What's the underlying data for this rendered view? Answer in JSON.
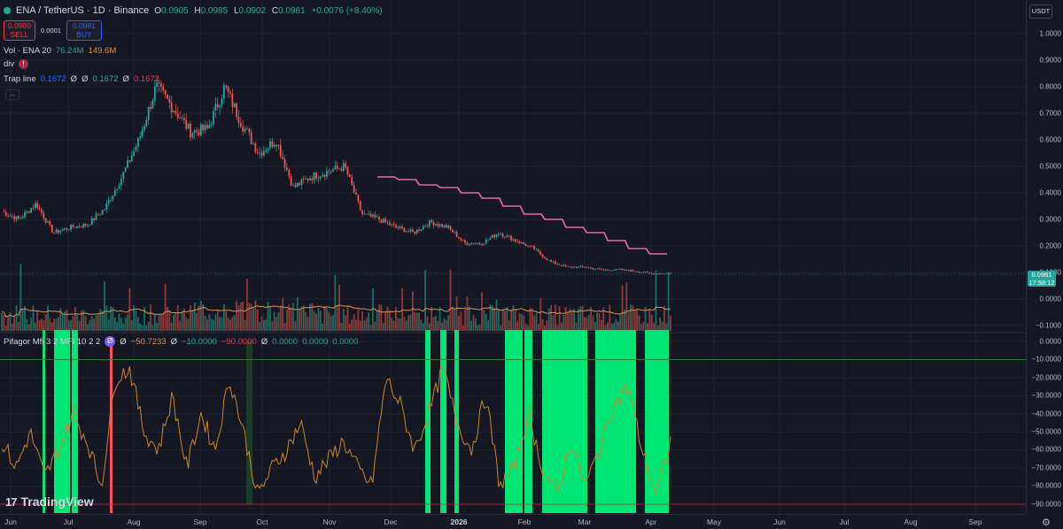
{
  "symbol": {
    "title": "ENA / TetherUS · 1D · Binance",
    "status_color": "#22ab94"
  },
  "ohlc": {
    "o_label": "O",
    "o": "0.0905",
    "h_label": "H",
    "h": "0.0985",
    "l_label": "L",
    "l": "0.0902",
    "c_label": "C",
    "c": "0.0981",
    "change": "+0.0076 (+8.40%)"
  },
  "trade": {
    "sell_price": "0.0980",
    "sell_label": "SELL",
    "spread": "0.0001",
    "buy_price": "0.0981",
    "buy_label": "BUY"
  },
  "indicators": {
    "vol": {
      "label": "Vol · ENA 20",
      "v1": "76.24M",
      "v2": "149.6M"
    },
    "div": {
      "label": "div",
      "badge": "!"
    },
    "trap": {
      "label": "Trap line",
      "v1": "0.1672",
      "n1": "Ø",
      "n2": "Ø",
      "v2": "0.1672",
      "n3": "Ø",
      "v3": "0.1672"
    },
    "pifagor": {
      "label": "Pifagor Mfi 3 2 MFI 10 2 2",
      "icon": "Ø",
      "n0": "Ø",
      "v1": "−50.7233",
      "n1": "Ø",
      "v2": "−10.0000",
      "v3": "−90.0000",
      "n2": "Ø",
      "v4": "0.0000",
      "v5": "0.0000",
      "v6": "0.0000"
    }
  },
  "price_axis": {
    "currency": "USDT",
    "upper_ticks": [
      "1.0000",
      "0.9000",
      "0.8000",
      "0.7000",
      "0.6000",
      "0.5000",
      "0.4000",
      "0.3000",
      "0.2000",
      "0.1000",
      "0.0000",
      "−0.1000"
    ],
    "current_price": "0.0981",
    "countdown": "17:58:12",
    "lower_ticks": [
      "0.0000",
      "−10.0000",
      "−20.0000",
      "−30.0000",
      "−40.0000",
      "−50.0000",
      "−60.0000",
      "−70.0000",
      "−80.0000",
      "−90.0000"
    ]
  },
  "time_axis": {
    "ticks": [
      {
        "label": "Jun",
        "bold": false
      },
      {
        "label": "Jul",
        "bold": false
      },
      {
        "label": "Aug",
        "bold": false
      },
      {
        "label": "Sep",
        "bold": false
      },
      {
        "label": "Oct",
        "bold": false
      },
      {
        "label": "Nov",
        "bold": false
      },
      {
        "label": "Dec",
        "bold": false
      },
      {
        "label": "2026",
        "bold": true
      },
      {
        "label": "Feb",
        "bold": false
      },
      {
        "label": "Mar",
        "bold": false
      },
      {
        "label": "Apr",
        "bold": false
      },
      {
        "label": "May",
        "bold": false
      },
      {
        "label": "Jun",
        "bold": false
      },
      {
        "label": "Jul",
        "bold": false
      },
      {
        "label": "Aug",
        "bold": false
      },
      {
        "label": "Sep",
        "bold": false
      }
    ]
  },
  "brand": {
    "name": "TradingView",
    "mark": "17"
  },
  "colors": {
    "up": "#26a69a",
    "down": "#ef5350",
    "trap": "#e56aa0",
    "vol_ma": "#d69155",
    "mfi_fill": "#00e676",
    "mfi_fill_red": "#ff5252",
    "level": "#2e7d32",
    "level_low": "#c62828"
  },
  "chart_data": {
    "type": "candlestick",
    "anchors": [
      [
        "Jun",
        0.33
      ],
      [
        "Jun",
        0.3
      ],
      [
        "Jun",
        0.36
      ],
      [
        "Jul",
        0.25
      ],
      [
        "Jul",
        0.27
      ],
      [
        "Jul",
        0.28
      ],
      [
        "Jul",
        0.34
      ],
      [
        "Jul",
        0.46
      ],
      [
        "Aug",
        0.6
      ],
      [
        "Aug",
        0.8
      ],
      [
        "Aug",
        0.72
      ],
      [
        "Aug",
        0.63
      ],
      [
        "Sep",
        0.64
      ],
      [
        "Sep",
        0.8
      ],
      [
        "Sep",
        0.66
      ],
      [
        "Sep",
        0.55
      ],
      [
        "Oct",
        0.6
      ],
      [
        "Oct",
        0.42
      ],
      [
        "Oct",
        0.46
      ],
      [
        "Oct",
        0.48
      ],
      [
        "Nov",
        0.5
      ],
      [
        "Nov",
        0.32
      ],
      [
        "Nov",
        0.3
      ],
      [
        "Nov",
        0.27
      ],
      [
        "Dec",
        0.25
      ],
      [
        "Dec",
        0.29
      ],
      [
        "Dec",
        0.27
      ],
      [
        "Dec",
        0.21
      ],
      [
        "Jan",
        0.21
      ],
      [
        "Jan",
        0.25
      ],
      [
        "Jan",
        0.22
      ],
      [
        "Jan",
        0.19
      ],
      [
        "Feb",
        0.14
      ],
      [
        "Feb",
        0.12
      ],
      [
        "Feb",
        0.12
      ],
      [
        "Mar",
        0.11
      ],
      [
        "Mar",
        0.11
      ],
      [
        "Mar",
        0.105
      ],
      [
        "Apr",
        0.095
      ],
      [
        "Apr",
        0.098
      ]
    ],
    "trap_line": [
      [
        "Dec",
        0.46
      ],
      [
        "Dec",
        0.45
      ],
      [
        "Dec",
        0.43
      ],
      [
        "Jan",
        0.42
      ],
      [
        "Jan",
        0.4
      ],
      [
        "Jan",
        0.38
      ],
      [
        "Feb",
        0.35
      ],
      [
        "Feb",
        0.32
      ],
      [
        "Feb",
        0.3
      ],
      [
        "Mar",
        0.27
      ],
      [
        "Mar",
        0.25
      ],
      [
        "Mar",
        0.22
      ],
      [
        "Apr",
        0.19
      ],
      [
        "Apr",
        0.17
      ]
    ],
    "mfi_anchors": [
      -55,
      -70,
      -50,
      -75,
      -60,
      -40,
      -55,
      -80,
      -20,
      -15,
      -50,
      -60,
      -30,
      -70,
      -40,
      -60,
      -20,
      -50,
      -85,
      -70,
      -60,
      -45,
      -75,
      -65,
      -55,
      -70,
      -80,
      -20,
      -35,
      -60,
      -40,
      -15,
      -45,
      -60,
      -30,
      -80,
      -70,
      -40,
      -70,
      -85,
      -55,
      -80,
      -60,
      -35,
      -25,
      -60,
      -85,
      -55
    ],
    "mfi_green_bands": [
      [
        48,
        51
      ],
      [
        61,
        79
      ],
      [
        81,
        88
      ],
      [
        480,
        486
      ],
      [
        497,
        504
      ],
      [
        513,
        518
      ],
      [
        570,
        590
      ],
      [
        592,
        601
      ],
      [
        612,
        663
      ],
      [
        672,
        718
      ],
      [
        728,
        755
      ]
    ],
    "mfi_red_bands": [
      [
        124,
        127
      ]
    ],
    "mfi_dark_bands": [
      [
        278,
        285
      ]
    ],
    "levels": [
      -10,
      -90
    ]
  }
}
